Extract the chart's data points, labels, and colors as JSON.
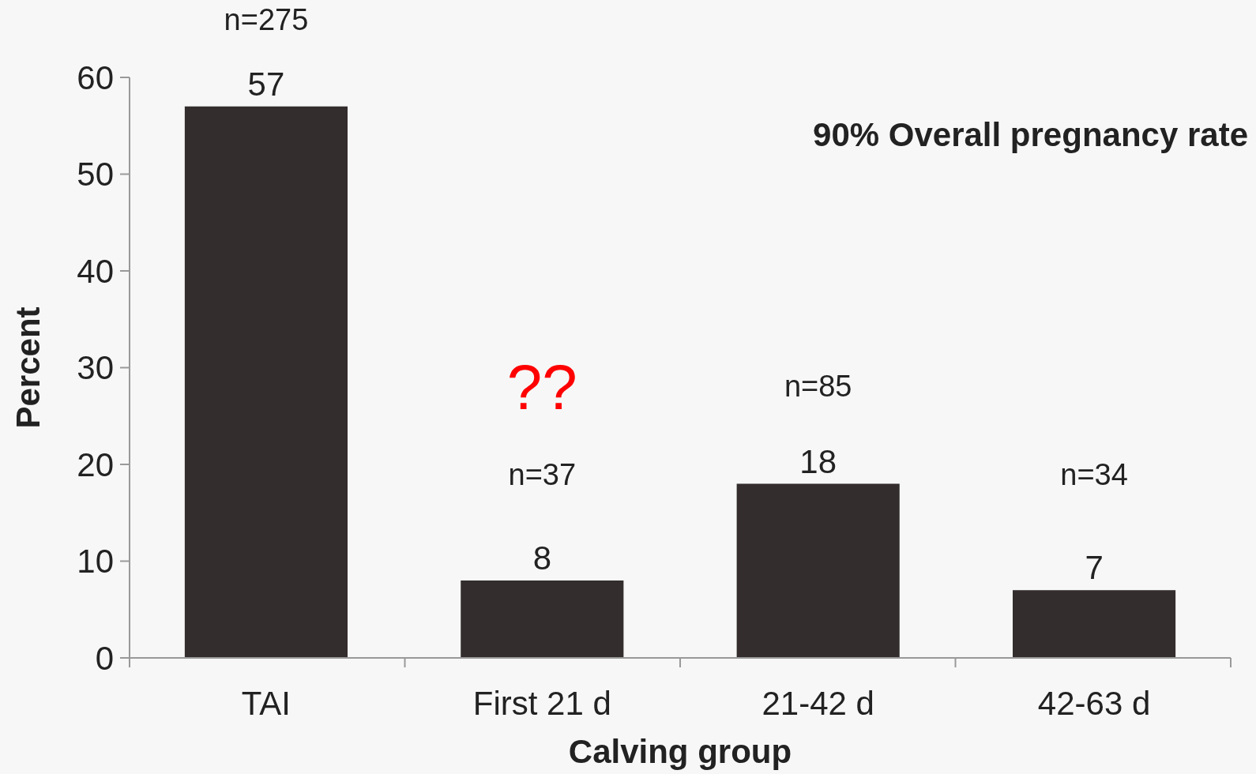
{
  "chart_data": {
    "type": "bar",
    "xlabel": "Calving group",
    "ylabel": "Percent",
    "categories": [
      "TAI",
      "First 21 d",
      "21-42 d",
      "42-63 d"
    ],
    "values": [
      57,
      8,
      18,
      7
    ],
    "color": "#332d2d",
    "data_labels": true,
    "ylim": [
      0,
      60
    ],
    "yticks": [
      0,
      10,
      20,
      30,
      40,
      50,
      60
    ],
    "grid": false,
    "annotations": [
      "90% Overall pregnancy rate",
      "n=275",
      "n=37",
      "??",
      "n=85",
      "n=34"
    ]
  }
}
